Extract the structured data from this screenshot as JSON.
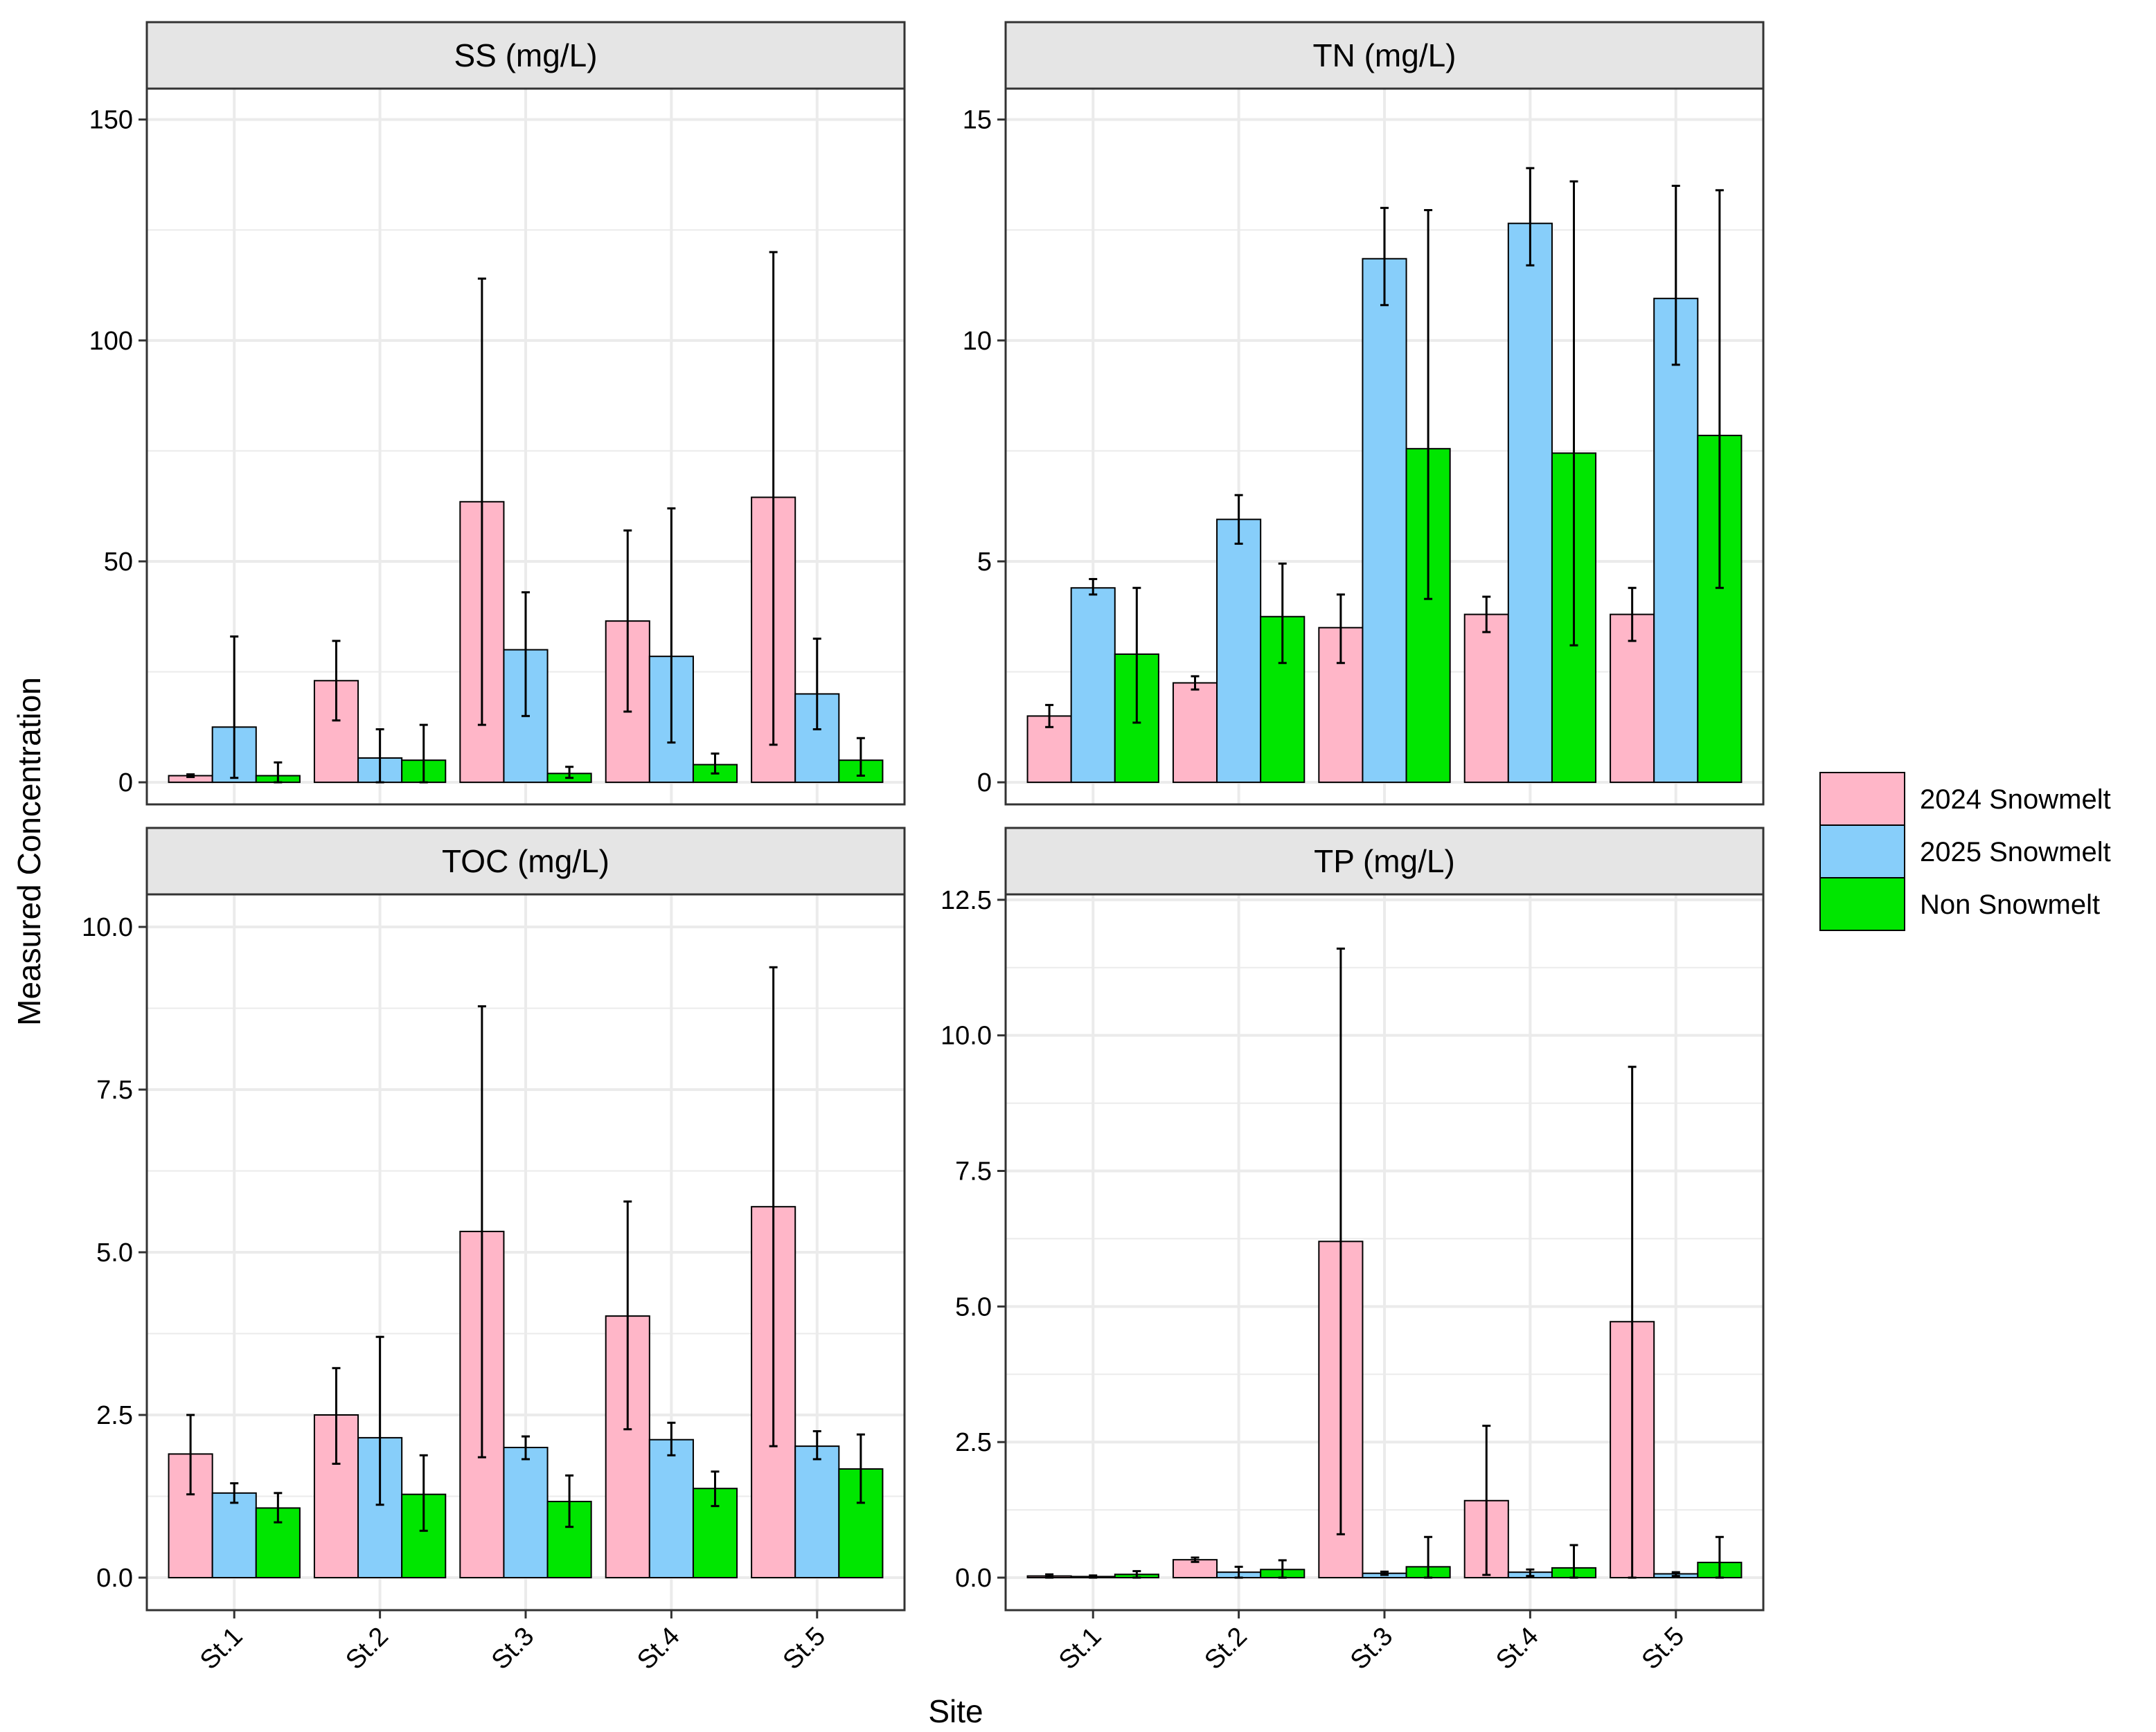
{
  "chart_data": {
    "type": "bar",
    "xlabel": "Site",
    "ylabel": "Measured Concentration",
    "categories": [
      "St.1",
      "St.2",
      "St.3",
      "St.4",
      "St.5"
    ],
    "legend": [
      {
        "name": "2024 Snowmelt",
        "color": "#FFB6C8"
      },
      {
        "name": "2025 Snowmelt",
        "color": "#87CEFA"
      },
      {
        "name": "Non Snowmelt",
        "color": "#00E600"
      }
    ],
    "panels": [
      {
        "title": "SS (mg/L)",
        "ylim": [
          -5,
          157
        ],
        "yticks": [
          0,
          50,
          100,
          150
        ],
        "yticklabels": [
          "0",
          "50",
          "100",
          "150"
        ],
        "series": [
          {
            "name": "2024 Snowmelt",
            "values": [
              1.5,
              23,
              63.5,
              36.5,
              64.5
            ],
            "err_low": [
              1.2,
              14,
              13,
              16,
              8.5
            ],
            "err_high": [
              1.8,
              32,
              114,
              57,
              120
            ]
          },
          {
            "name": "2025 Snowmelt",
            "values": [
              12.5,
              5.5,
              30,
              28.5,
              20
            ],
            "err_low": [
              1,
              0,
              15,
              9,
              12
            ],
            "err_high": [
              33,
              12,
              43,
              62,
              32.5
            ]
          },
          {
            "name": "Non Snowmelt",
            "values": [
              1.5,
              5,
              2,
              4,
              5
            ],
            "err_low": [
              0,
              0,
              1,
              2,
              1.5
            ],
            "err_high": [
              4.5,
              13,
              3.5,
              6.5,
              10
            ]
          }
        ]
      },
      {
        "title": "TN (mg/L)",
        "ylim": [
          -0.5,
          15.7
        ],
        "yticks": [
          0,
          5,
          10,
          15
        ],
        "yticklabels": [
          "0",
          "5",
          "10",
          "15"
        ],
        "series": [
          {
            "name": "2024 Snowmelt",
            "values": [
              1.5,
              2.25,
              3.5,
              3.8,
              3.8
            ],
            "err_low": [
              1.25,
              2.1,
              2.7,
              3.4,
              3.2
            ],
            "err_high": [
              1.75,
              2.4,
              4.25,
              4.2,
              4.4
            ]
          },
          {
            "name": "2025 Snowmelt",
            "values": [
              4.4,
              5.95,
              11.85,
              12.65,
              10.95
            ],
            "err_low": [
              4.25,
              5.4,
              10.8,
              11.7,
              9.45
            ],
            "err_high": [
              4.6,
              6.5,
              13,
              13.9,
              13.5
            ]
          },
          {
            "name": "Non Snowmelt",
            "values": [
              2.9,
              3.75,
              7.55,
              7.45,
              7.85
            ],
            "err_low": [
              1.35,
              2.7,
              4.15,
              3.1,
              4.4
            ],
            "err_high": [
              4.4,
              4.95,
              12.95,
              13.6,
              13.4
            ]
          }
        ]
      },
      {
        "title": "TOC (mg/L)",
        "ylim": [
          -0.5,
          10.5
        ],
        "yticks": [
          0,
          2.5,
          5,
          7.5,
          10
        ],
        "yticklabels": [
          "0.0",
          "2.5",
          "5.0",
          "7.5",
          "10.0"
        ],
        "series": [
          {
            "name": "2024 Snowmelt",
            "values": [
              1.9,
              2.5,
              5.32,
              4.02,
              5.7
            ],
            "err_low": [
              1.28,
              1.75,
              1.85,
              2.28,
              2.02
            ],
            "err_high": [
              2.5,
              3.22,
              8.78,
              5.78,
              9.38
            ]
          },
          {
            "name": "2025 Snowmelt",
            "values": [
              1.3,
              2.15,
              2.0,
              2.12,
              2.02
            ],
            "err_low": [
              1.15,
              1.12,
              1.82,
              1.88,
              1.82
            ],
            "err_high": [
              1.45,
              3.7,
              2.17,
              2.38,
              2.25
            ]
          },
          {
            "name": "Non Snowmelt",
            "values": [
              1.07,
              1.28,
              1.17,
              1.37,
              1.67
            ],
            "err_low": [
              0.85,
              0.72,
              0.78,
              1.1,
              1.15
            ],
            "err_high": [
              1.3,
              1.88,
              1.57,
              1.63,
              2.2
            ]
          }
        ]
      },
      {
        "title": "TP (mg/L)",
        "ylim": [
          -0.6,
          12.6
        ],
        "yticks": [
          0,
          2.5,
          5,
          7.5,
          10,
          12.5
        ],
        "yticklabels": [
          "0.0",
          "2.5",
          "5.0",
          "7.5",
          "10.0",
          "12.5"
        ],
        "series": [
          {
            "name": "2024 Snowmelt",
            "values": [
              0.03,
              0.33,
              6.2,
              1.42,
              4.72
            ],
            "err_low": [
              0.0,
              0.29,
              0.8,
              0.05,
              0.0
            ],
            "err_high": [
              0.06,
              0.37,
              11.6,
              2.8,
              9.42
            ]
          },
          {
            "name": "2025 Snowmelt",
            "values": [
              0.02,
              0.1,
              0.08,
              0.1,
              0.07
            ],
            "err_low": [
              0.0,
              0.0,
              0.05,
              0.03,
              0.03
            ],
            "err_high": [
              0.04,
              0.2,
              0.11,
              0.15,
              0.1
            ]
          },
          {
            "name": "Non Snowmelt",
            "values": [
              0.06,
              0.15,
              0.2,
              0.18,
              0.28
            ],
            "err_low": [
              0.0,
              0.0,
              0.0,
              0.0,
              0.0
            ],
            "err_high": [
              0.12,
              0.32,
              0.75,
              0.6,
              0.75
            ]
          }
        ]
      }
    ]
  }
}
